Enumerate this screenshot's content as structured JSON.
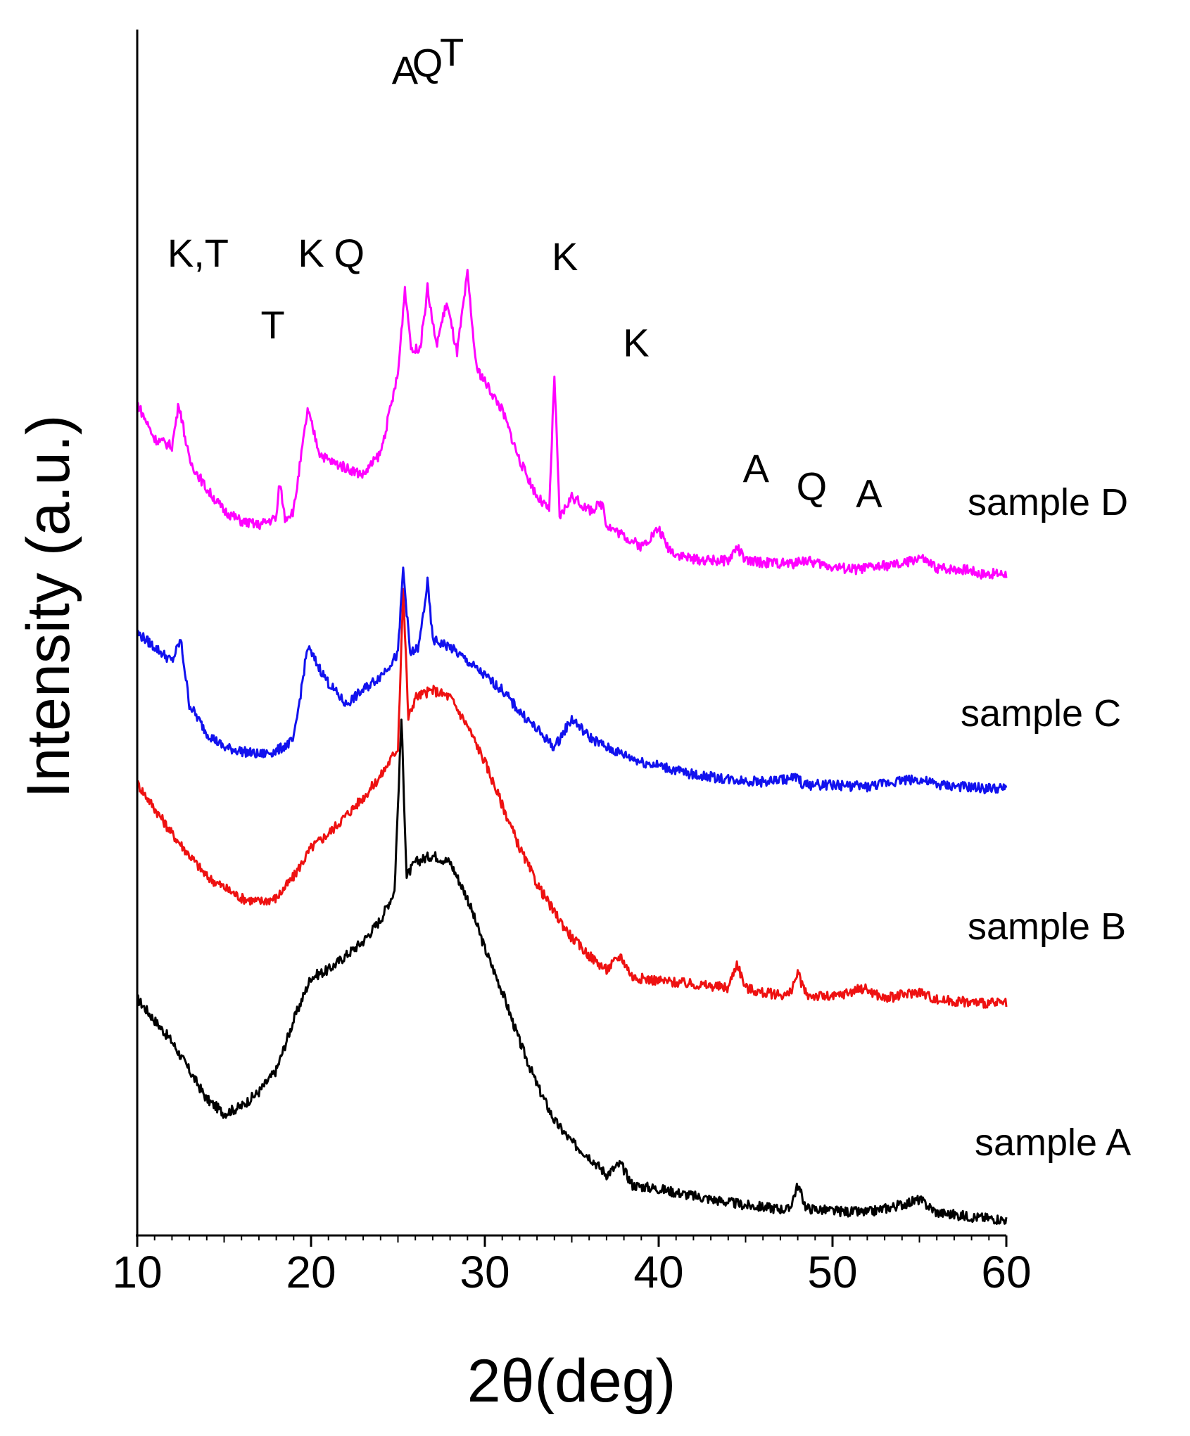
{
  "chart_data": {
    "type": "line",
    "title": "",
    "xlabel": "2θ(deg)",
    "ylabel": "Intensity (a.u.)",
    "xlim": [
      10,
      60
    ],
    "x_ticks": [
      10,
      20,
      30,
      40,
      50,
      60
    ],
    "x_tick_labels": [
      "10",
      "20",
      "30",
      "40",
      "50",
      "60"
    ],
    "y_ticks_shown": false,
    "series": [
      {
        "name": "sample A",
        "color": "#000000",
        "offset": 0,
        "points": [
          [
            10,
            33
          ],
          [
            12,
            27
          ],
          [
            14,
            19
          ],
          [
            15,
            17
          ],
          [
            16,
            18
          ],
          [
            17,
            20
          ],
          [
            18,
            23
          ],
          [
            19,
            30
          ],
          [
            20,
            36
          ],
          [
            21,
            37
          ],
          [
            22,
            39
          ],
          [
            23,
            41
          ],
          [
            24,
            44
          ],
          [
            24.8,
            48
          ],
          [
            25.2,
            72
          ],
          [
            25.5,
            50
          ],
          [
            26,
            52
          ],
          [
            27,
            53
          ],
          [
            28,
            52
          ],
          [
            29,
            47
          ],
          [
            30,
            40
          ],
          [
            31,
            34
          ],
          [
            32,
            27
          ],
          [
            33,
            21
          ],
          [
            34,
            16
          ],
          [
            35,
            13
          ],
          [
            36,
            11
          ],
          [
            37,
            8.5
          ],
          [
            37.8,
            10
          ],
          [
            38.5,
            7
          ],
          [
            40,
            6.5
          ],
          [
            42,
            5.5
          ],
          [
            45,
            4.2
          ],
          [
            47.5,
            3.6
          ],
          [
            48,
            7
          ],
          [
            48.5,
            3.8
          ],
          [
            50,
            3.4
          ],
          [
            52,
            3.2
          ],
          [
            53.8,
            4.2
          ],
          [
            55,
            5
          ],
          [
            56,
            3.2
          ],
          [
            58,
            2.6
          ],
          [
            60,
            2.2
          ]
        ]
      },
      {
        "name": "sample B",
        "color": "#ee1111",
        "offset": 30,
        "points": [
          [
            10,
            33
          ],
          [
            12,
            26
          ],
          [
            14,
            20
          ],
          [
            16,
            17
          ],
          [
            17,
            16.5
          ],
          [
            18,
            17
          ],
          [
            19,
            20
          ],
          [
            20,
            24
          ],
          [
            21,
            26
          ],
          [
            22,
            28.5
          ],
          [
            23,
            31
          ],
          [
            24,
            34
          ],
          [
            25,
            38
          ],
          [
            25.3,
            60
          ],
          [
            25.6,
            42
          ],
          [
            26,
            45
          ],
          [
            27,
            46
          ],
          [
            28,
            45
          ],
          [
            29,
            41
          ],
          [
            30,
            36
          ],
          [
            31,
            30
          ],
          [
            32,
            24
          ],
          [
            33,
            19
          ],
          [
            34,
            15
          ],
          [
            35,
            11.5
          ],
          [
            36,
            9
          ],
          [
            37,
            7
          ],
          [
            37.8,
            9
          ],
          [
            38.5,
            6
          ],
          [
            40,
            5.5
          ],
          [
            42,
            5
          ],
          [
            44,
            4.5
          ],
          [
            44.5,
            8
          ],
          [
            45,
            4.5
          ],
          [
            46,
            3.8
          ],
          [
            47.5,
            3.5
          ],
          [
            48,
            6.5
          ],
          [
            48.5,
            3.5
          ],
          [
            50,
            3.2
          ],
          [
            51.8,
            4.5
          ],
          [
            53,
            3
          ],
          [
            54,
            3.5
          ],
          [
            55,
            4
          ],
          [
            56,
            2.8
          ],
          [
            58,
            2.5
          ],
          [
            60,
            2.3
          ]
        ]
      },
      {
        "name": "sample C",
        "color": "#1111ee",
        "offset": 60,
        "points": [
          [
            10,
            24
          ],
          [
            12,
            20
          ],
          [
            12.5,
            23
          ],
          [
            13,
            14
          ],
          [
            14,
            10
          ],
          [
            15,
            8
          ],
          [
            16,
            7.5
          ],
          [
            17,
            7
          ],
          [
            18,
            7.5
          ],
          [
            19,
            9
          ],
          [
            19.8,
            22
          ],
          [
            20.5,
            19
          ],
          [
            21,
            17
          ],
          [
            22,
            14
          ],
          [
            23,
            16
          ],
          [
            24,
            18
          ],
          [
            25,
            21
          ],
          [
            25.3,
            33
          ],
          [
            25.7,
            21
          ],
          [
            26.2,
            22
          ],
          [
            26.7,
            31
          ],
          [
            27,
            23
          ],
          [
            28,
            22
          ],
          [
            29,
            20
          ],
          [
            30,
            18
          ],
          [
            31,
            16
          ],
          [
            32,
            13
          ],
          [
            33,
            10.5
          ],
          [
            34,
            8
          ],
          [
            35,
            12
          ],
          [
            36,
            9.5
          ],
          [
            37,
            8
          ],
          [
            38,
            7
          ],
          [
            39,
            6
          ],
          [
            40,
            5.5
          ],
          [
            41,
            4.8
          ],
          [
            42,
            4.2
          ],
          [
            44,
            3.6
          ],
          [
            46,
            3.2
          ],
          [
            48,
            3.8
          ],
          [
            48.3,
            2.8
          ],
          [
            50,
            2.8
          ],
          [
            52,
            2.5
          ],
          [
            54,
            3.5
          ],
          [
            55,
            3.5
          ],
          [
            56,
            2.8
          ],
          [
            58,
            2.4
          ],
          [
            60,
            2.2
          ]
        ]
      },
      {
        "name": "sample D",
        "color": "#ff00ff",
        "offset": 90,
        "points": [
          [
            10,
            26
          ],
          [
            11,
            21
          ],
          [
            12,
            20
          ],
          [
            12.4,
            26
          ],
          [
            13,
            18
          ],
          [
            14,
            14
          ],
          [
            15,
            11
          ],
          [
            16,
            9.5
          ],
          [
            17,
            9
          ],
          [
            18,
            10
          ],
          [
            18.2,
            15
          ],
          [
            18.5,
            10
          ],
          [
            19,
            11
          ],
          [
            19.8,
            25
          ],
          [
            20.5,
            19
          ],
          [
            21,
            18
          ],
          [
            22,
            17
          ],
          [
            23,
            16
          ],
          [
            24,
            19
          ],
          [
            25,
            30
          ],
          [
            25.4,
            42
          ],
          [
            25.8,
            33
          ],
          [
            26.3,
            34
          ],
          [
            26.7,
            42
          ],
          [
            27.2,
            34
          ],
          [
            27.8,
            40
          ],
          [
            28.4,
            33
          ],
          [
            29,
            44
          ],
          [
            29.5,
            31
          ],
          [
            30,
            29
          ],
          [
            31,
            25
          ],
          [
            32,
            18
          ],
          [
            33,
            13
          ],
          [
            33.7,
            11
          ],
          [
            34,
            30
          ],
          [
            34.3,
            10
          ],
          [
            35,
            13
          ],
          [
            36,
            11
          ],
          [
            36.8,
            12
          ],
          [
            37,
            9
          ],
          [
            38,
            7.5
          ],
          [
            39,
            6
          ],
          [
            40,
            8.5
          ],
          [
            40.5,
            6
          ],
          [
            41,
            5
          ],
          [
            42,
            4.2
          ],
          [
            44,
            4
          ],
          [
            44.5,
            6
          ],
          [
            45,
            4
          ],
          [
            46,
            3.8
          ],
          [
            48,
            3.6
          ],
          [
            48.1,
            4.2
          ],
          [
            50,
            3.2
          ],
          [
            51.3,
            2.8
          ],
          [
            52.5,
            3.2
          ],
          [
            54,
            3.5
          ],
          [
            55,
            4.5
          ],
          [
            56,
            3
          ],
          [
            57.8,
            2.8
          ],
          [
            58.5,
            2.2
          ],
          [
            60,
            2.2
          ]
        ]
      }
    ],
    "series_labels": [
      "sample D",
      "sample C",
      "sample B",
      "sample A"
    ],
    "annotations": [
      {
        "text": "K,T",
        "x": 13.5,
        "intensity": 135
      },
      {
        "text": "T",
        "x": 17.8,
        "intensity": 125
      },
      {
        "text": "K",
        "x": 20.0,
        "intensity": 135
      },
      {
        "text": "Q",
        "x": 22.2,
        "intensity": 135
      },
      {
        "text": "A",
        "x": 25.4,
        "intensity": 160.5
      },
      {
        "text": "Q",
        "x": 26.7,
        "intensity": 161.5
      },
      {
        "text": "T",
        "x": 28.1,
        "intensity": 163
      },
      {
        "text": "K",
        "x": 34.6,
        "intensity": 134.5
      },
      {
        "text": "K",
        "x": 38.7,
        "intensity": 122.5
      },
      {
        "text": "A",
        "x": 45.6,
        "intensity": 105
      },
      {
        "text": "Q",
        "x": 48.8,
        "intensity": 102.5
      },
      {
        "text": "A",
        "x": 52.1,
        "intensity": 101.5
      }
    ]
  }
}
